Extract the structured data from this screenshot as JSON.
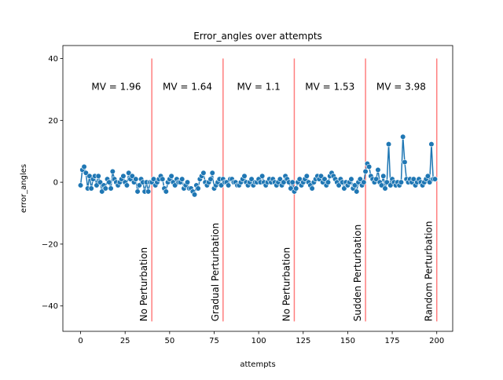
{
  "chart_data": {
    "type": "line",
    "title": "Error_angles over attempts",
    "xlabel": "attempts",
    "ylabel": "error_angles",
    "xlim": [
      -9.95,
      208.95
    ],
    "ylim": [
      -48.2,
      44.2
    ],
    "xticks": [
      0,
      25,
      50,
      75,
      100,
      125,
      150,
      175,
      200
    ],
    "yticks": [
      {
        "value": -40,
        "label": "−40"
      },
      {
        "value": -20,
        "label": "−20"
      },
      0,
      20,
      40
    ],
    "x": [
      0,
      1,
      2,
      3,
      4,
      5,
      6,
      7,
      8,
      9,
      10,
      11,
      12,
      13,
      14,
      15,
      16,
      17,
      18,
      19,
      20,
      21,
      22,
      23,
      24,
      25,
      26,
      27,
      28,
      29,
      30,
      31,
      32,
      33,
      34,
      35,
      36,
      37,
      38,
      39,
      40,
      41,
      42,
      43,
      44,
      45,
      46,
      47,
      48,
      49,
      50,
      51,
      52,
      53,
      54,
      55,
      56,
      57,
      58,
      59,
      60,
      61,
      62,
      63,
      64,
      65,
      66,
      67,
      68,
      69,
      70,
      71,
      72,
      73,
      74,
      75,
      76,
      77,
      78,
      79,
      80,
      81,
      82,
      83,
      84,
      85,
      86,
      87,
      88,
      89,
      90,
      91,
      92,
      93,
      94,
      95,
      96,
      97,
      98,
      99,
      100,
      101,
      102,
      103,
      104,
      105,
      106,
      107,
      108,
      109,
      110,
      111,
      112,
      113,
      114,
      115,
      116,
      117,
      118,
      119,
      120,
      121,
      122,
      123,
      124,
      125,
      126,
      127,
      128,
      129,
      130,
      131,
      132,
      133,
      134,
      135,
      136,
      137,
      138,
      139,
      140,
      141,
      142,
      143,
      144,
      145,
      146,
      147,
      148,
      149,
      150,
      151,
      152,
      153,
      154,
      155,
      156,
      157,
      158,
      159,
      160,
      161,
      162,
      163,
      164,
      165,
      166,
      167,
      168,
      169,
      170,
      171,
      172,
      173,
      174,
      175,
      176,
      177,
      178,
      179,
      180,
      181,
      182,
      183,
      184,
      185,
      186,
      187,
      188,
      189,
      190,
      191,
      192,
      193,
      194,
      195,
      196,
      197,
      198,
      199
    ],
    "series": [
      {
        "color": "#1f77b4",
        "values": [
          -1,
          4,
          5,
          3,
          -2,
          2,
          -2,
          1,
          2,
          -1,
          2,
          0,
          -3,
          -1,
          -2,
          1,
          0,
          -2,
          3.5,
          1,
          0,
          -1,
          0,
          1,
          2,
          0,
          -1,
          3,
          1,
          2,
          0,
          1,
          -3,
          -1,
          1,
          0,
          -3,
          0,
          -3,
          0,
          0,
          1,
          -1,
          0,
          1,
          2,
          1,
          -2,
          -3,
          0,
          1,
          2,
          0,
          -1,
          1,
          0,
          0,
          1,
          -2,
          -1,
          0,
          -2,
          -2,
          -3,
          -4,
          -1,
          -2,
          1,
          2,
          3,
          0,
          -1,
          0,
          1,
          3,
          -2,
          -1,
          0,
          1,
          -1,
          1,
          0,
          0,
          -1,
          1,
          1,
          0,
          0,
          -1,
          -1,
          0,
          1,
          2,
          0,
          -1,
          0,
          1,
          -1,
          0,
          0,
          1,
          0,
          2,
          0,
          -1,
          0,
          1,
          0,
          1,
          0,
          -1,
          0,
          1,
          -1,
          0,
          2,
          1,
          0,
          -2,
          0,
          -3,
          -2,
          0,
          1,
          -1,
          0,
          1,
          2,
          0,
          -1,
          -2,
          0,
          1,
          2,
          1,
          2,
          0,
          1,
          -1,
          0,
          2,
          3,
          2,
          1,
          0,
          -1,
          1,
          0,
          -2,
          0,
          -1,
          0,
          1,
          -2,
          -1,
          -3,
          0,
          1,
          -1,
          0,
          3.5,
          6,
          5,
          2,
          1,
          0,
          1,
          4,
          0,
          -1,
          2,
          -2,
          0,
          12.3,
          -1,
          1,
          0,
          -1,
          0,
          -1,
          0,
          14.7,
          6.5,
          1,
          0,
          1,
          0,
          1,
          -1,
          0,
          1,
          0,
          -1,
          0,
          1,
          2,
          0,
          12.3,
          1,
          1
        ]
      }
    ],
    "vlines": [
      {
        "x": 40,
        "ymin": -45,
        "ymax": 40,
        "label": "No Perturbation",
        "mv": "MV = 1.96"
      },
      {
        "x": 80,
        "ymin": -45,
        "ymax": 40,
        "label": "Gradual Perturbation",
        "mv": "MV = 1.64"
      },
      {
        "x": 120,
        "ymin": -45,
        "ymax": 40,
        "label": "No Perturbation",
        "mv": "MV = 1.1"
      },
      {
        "x": 160,
        "ymin": -45,
        "ymax": 40,
        "label": "Sudden Perturbation",
        "mv": "MV = 1.53"
      },
      {
        "x": 200,
        "ymin": -45,
        "ymax": 40,
        "label": "Random Perturbation",
        "mv": "MV = 3.98"
      }
    ],
    "vline_color": "#ff7f7f",
    "mv_color": "#7f7fff"
  }
}
